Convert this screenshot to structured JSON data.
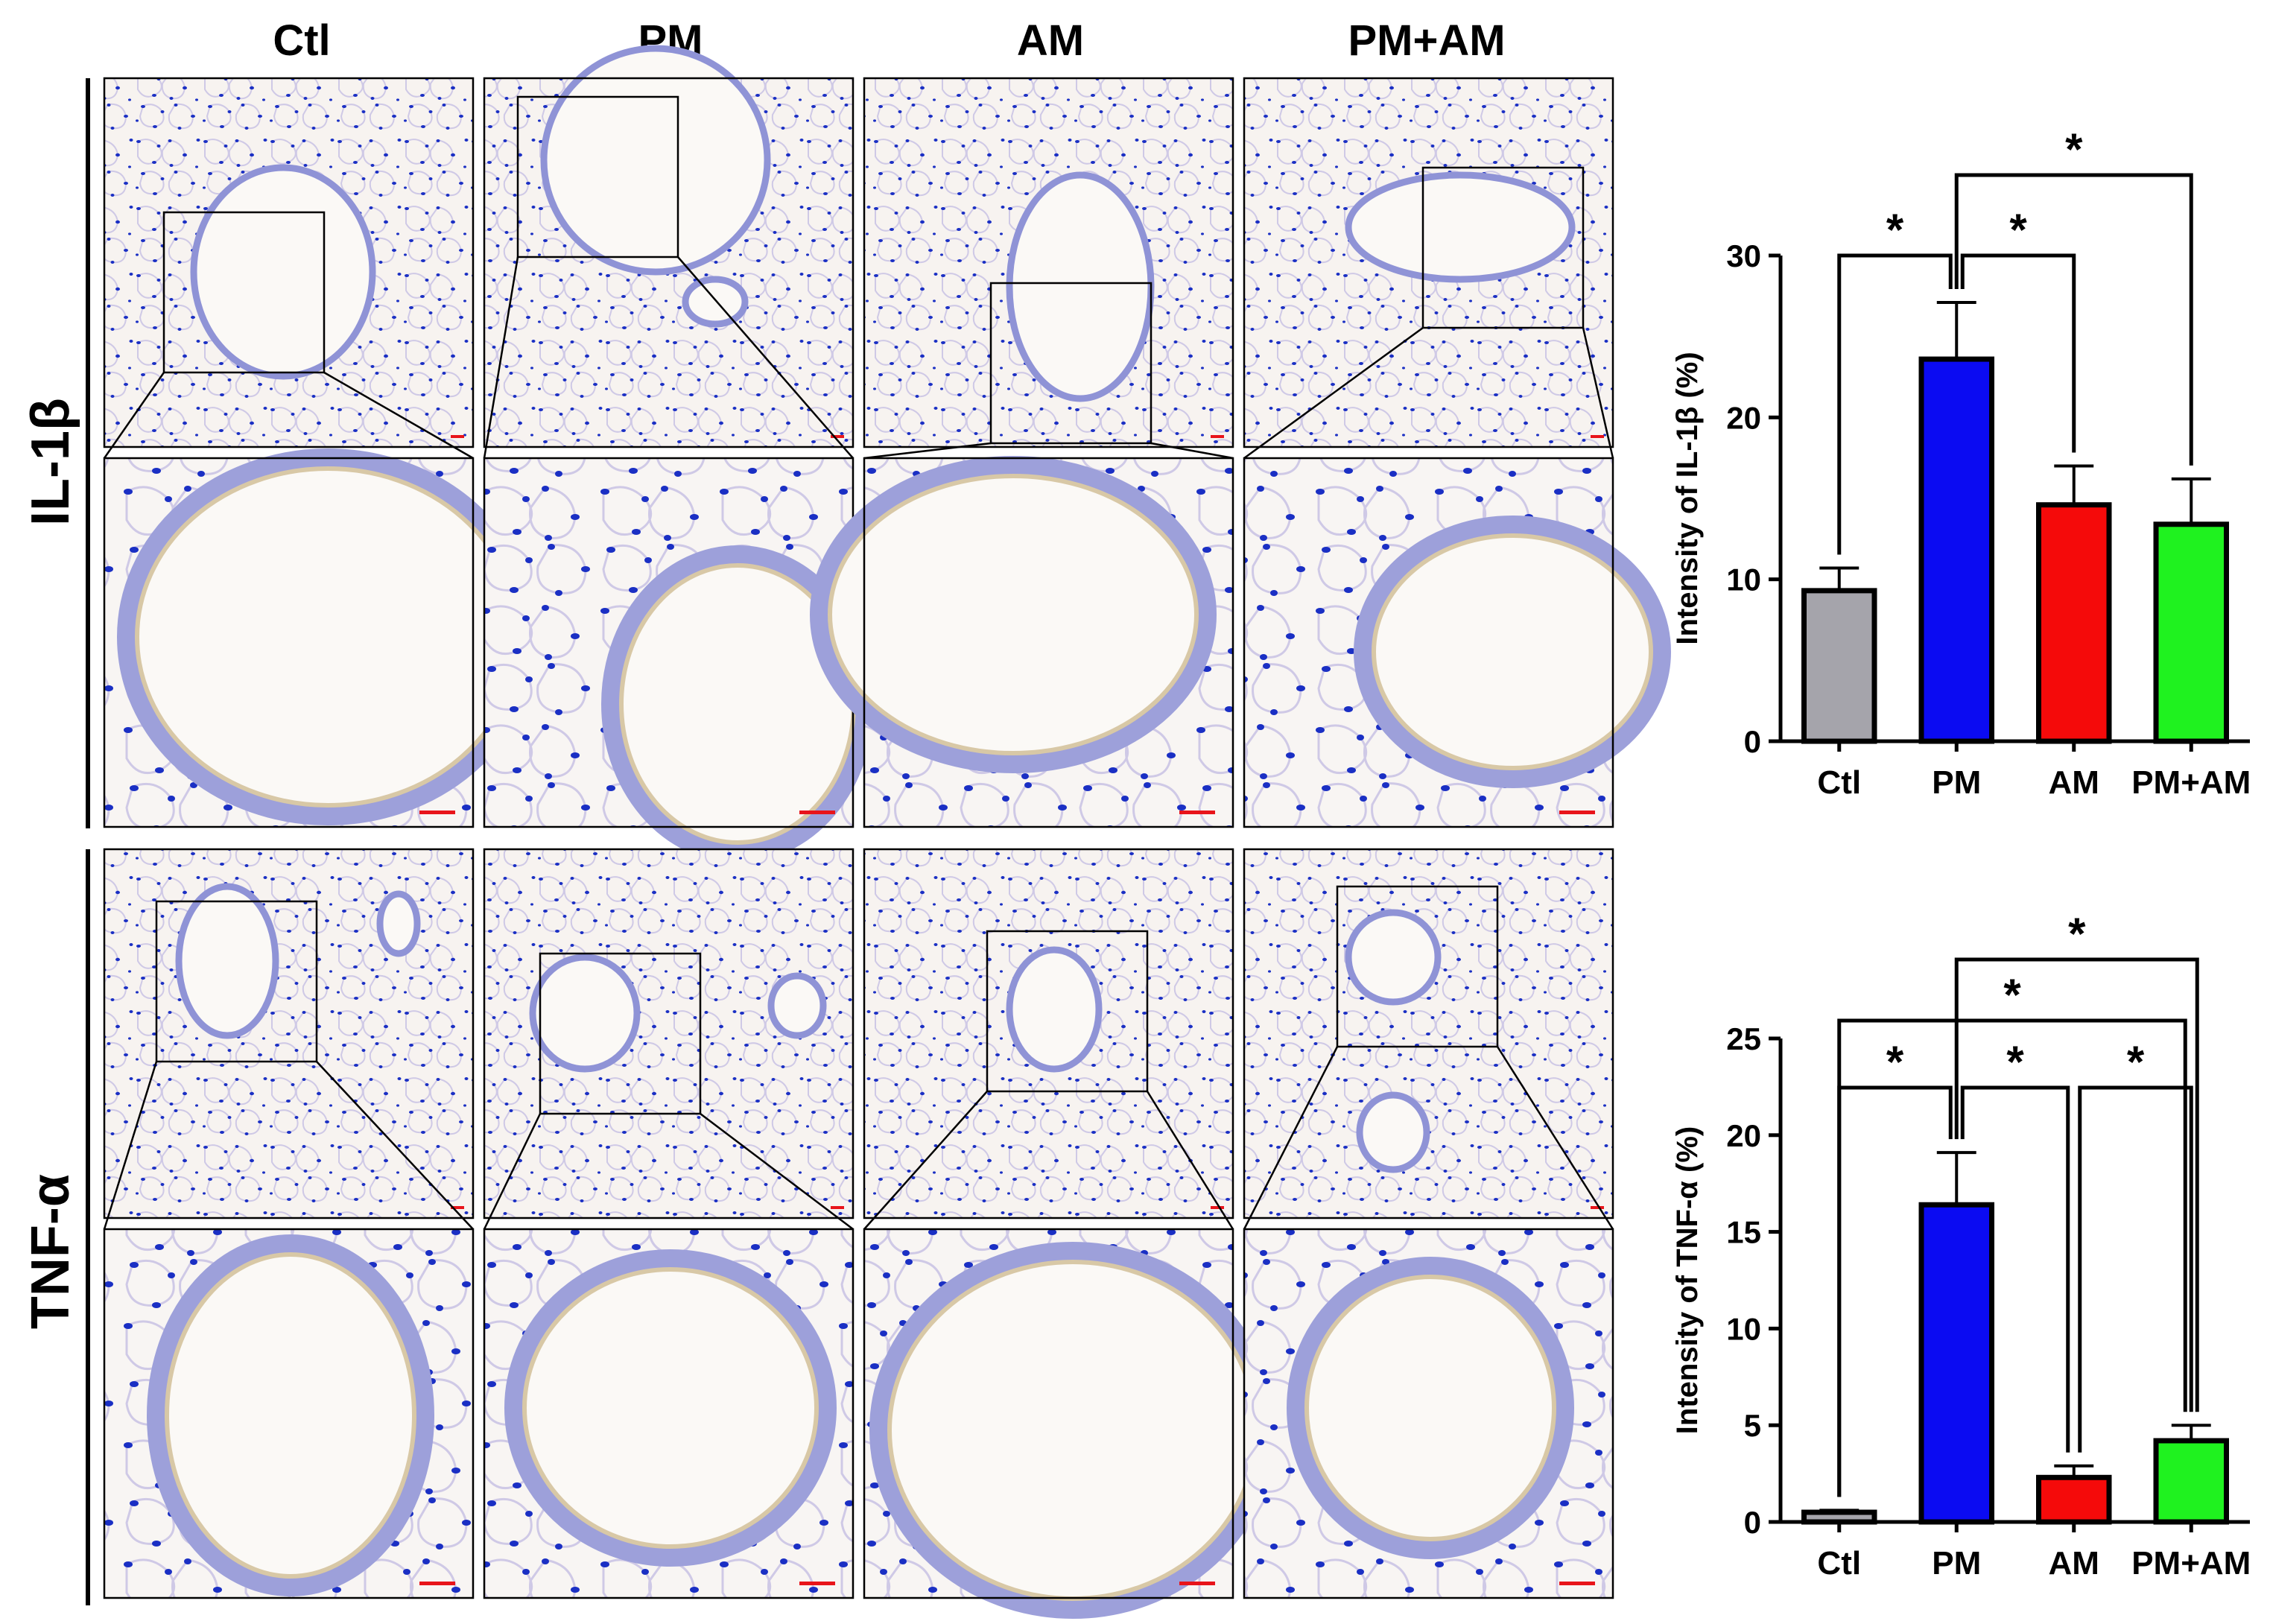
{
  "columns": [
    "Ctl",
    "PM",
    "AM",
    "PM+AM"
  ],
  "rows": [
    "IL-1β",
    "TNF-α"
  ],
  "colors": {
    "Ctl": "#a5a4ab",
    "PM": "#0b0bf2",
    "AM": "#f50a0a",
    "PM+AM": "#1ff21f",
    "tissue_bg": "#f7f3f0",
    "nuclei": "#1a2fc4",
    "stroma": "#c9c4e0",
    "scale_bar": "#e8141a"
  },
  "chart_data": [
    {
      "type": "bar",
      "categories": [
        "Ctl",
        "PM",
        "AM",
        "PM+AM"
      ],
      "values": [
        9.3,
        23.6,
        14.6,
        13.4
      ],
      "errors": [
        1.4,
        3.5,
        2.4,
        2.8
      ],
      "title": "",
      "xlabel": "",
      "ylabel": "Intensity of IL-1β (%)",
      "ylim": [
        0,
        30
      ],
      "yticks": [
        0,
        10,
        20,
        30
      ],
      "grid": false,
      "significance": [
        {
          "from": 0,
          "to": 1,
          "label": "*"
        },
        {
          "from": 1,
          "to": 2,
          "label": "*"
        },
        {
          "from": 1,
          "to": 3,
          "label": "*"
        }
      ]
    },
    {
      "type": "bar",
      "categories": [
        "Ctl",
        "PM",
        "AM",
        "PM+AM"
      ],
      "values": [
        0.5,
        16.4,
        2.3,
        4.2
      ],
      "errors": [
        0.1,
        2.7,
        0.6,
        0.8
      ],
      "title": "",
      "xlabel": "",
      "ylabel": "Intensity of TNF-α (%)",
      "ylim": [
        0,
        25
      ],
      "yticks": [
        0,
        5,
        10,
        15,
        20,
        25
      ],
      "grid": false,
      "significance": [
        {
          "from": 0,
          "to": 1,
          "label": "*"
        },
        {
          "from": 1,
          "to": 2,
          "label": "*"
        },
        {
          "from": 2,
          "to": 3,
          "label": "*"
        },
        {
          "from": 0,
          "to": 3,
          "label": "*"
        },
        {
          "from": 1,
          "to": 3,
          "label": "*"
        }
      ]
    }
  ]
}
